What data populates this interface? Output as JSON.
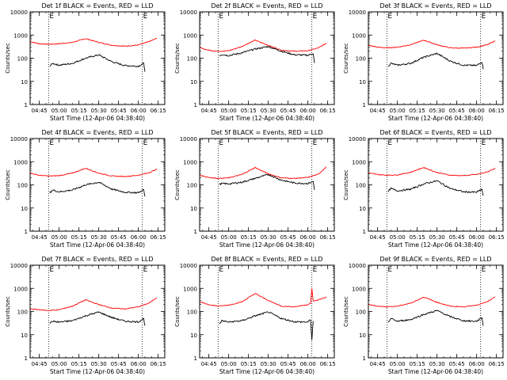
{
  "figure": {
    "x_label": "Start Time (12-Apr-06 04:38:40)",
    "y_label": "Counts/sec",
    "x_tick_labels": [
      "04:45",
      "05:00",
      "05:15",
      "05:30",
      "05:45",
      "06:00",
      "06:15"
    ],
    "y_tick_labels": [
      "1",
      "10",
      "100",
      "1000",
      "10000"
    ]
  },
  "chart_data": [
    {
      "type": "line",
      "title": "Det 1f BLACK = Events, RED = LLD",
      "xlabel": "Start Time (12-Apr-06 04:38:40)",
      "ylabel": "Counts/sec",
      "xlim": [
        "04:38",
        "06:20"
      ],
      "ylim": [
        1,
        10000
      ],
      "yscale": "log",
      "vlines": [
        "04:52",
        "06:03"
      ],
      "markers": [
        "E",
        "E"
      ],
      "series": [
        {
          "color": "#ff0000",
          "x": [
            "04:38",
            "04:45",
            "04:52",
            "05:00",
            "05:10",
            "05:20",
            "05:30",
            "05:40",
            "05:50",
            "06:00",
            "06:08",
            "06:14"
          ],
          "y": [
            520,
            420,
            400,
            420,
            480,
            700,
            480,
            360,
            330,
            370,
            520,
            720
          ]
        },
        {
          "color": "#000000",
          "x": [
            "04:53",
            "04:55",
            "05:00",
            "05:10",
            "05:20",
            "05:30",
            "05:40",
            "05:50",
            "06:00",
            "06:04",
            "06:05"
          ],
          "y": [
            45,
            60,
            50,
            60,
            100,
            140,
            70,
            48,
            45,
            60,
            28
          ]
        }
      ]
    },
    {
      "type": "line",
      "title": "Det 2f BLACK = Events, RED = LLD",
      "xlabel": "Start Time (12-Apr-06 04:38:40)",
      "ylabel": "Counts/sec",
      "xlim": [
        "04:38",
        "06:20"
      ],
      "ylim": [
        1,
        10000
      ],
      "yscale": "log",
      "vlines": [
        "04:52",
        "06:03"
      ],
      "markers": [
        "E",
        "E"
      ],
      "series": [
        {
          "color": "#ff0000",
          "x": [
            "04:38",
            "04:45",
            "04:52",
            "05:00",
            "05:10",
            "05:20",
            "05:30",
            "05:40",
            "05:50",
            "06:00",
            "06:08",
            "06:14"
          ],
          "y": [
            280,
            220,
            200,
            210,
            320,
            600,
            360,
            220,
            200,
            210,
            280,
            440
          ]
        },
        {
          "color": "#000000",
          "x": [
            "04:53",
            "04:55",
            "05:00",
            "05:10",
            "05:20",
            "05:30",
            "05:40",
            "05:50",
            "06:00",
            "06:04",
            "06:05"
          ],
          "y": [
            130,
            145,
            130,
            170,
            250,
            320,
            200,
            140,
            135,
            160,
            60
          ]
        }
      ]
    },
    {
      "type": "line",
      "title": "Det 3f BLACK = Events, RED = LLD",
      "xlabel": "Start Time (12-Apr-06 04:38:40)",
      "ylabel": "Counts/sec",
      "xlim": [
        "04:38",
        "06:20"
      ],
      "ylim": [
        1,
        10000
      ],
      "yscale": "log",
      "vlines": [
        "04:52",
        "06:03"
      ],
      "markers": [
        "E",
        "E"
      ],
      "series": [
        {
          "color": "#ff0000",
          "x": [
            "04:38",
            "04:45",
            "04:52",
            "05:00",
            "05:10",
            "05:20",
            "05:30",
            "05:40",
            "05:50",
            "06:00",
            "06:08",
            "06:14"
          ],
          "y": [
            360,
            300,
            280,
            300,
            380,
            600,
            380,
            280,
            270,
            300,
            380,
            560
          ]
        },
        {
          "color": "#000000",
          "x": [
            "04:53",
            "04:55",
            "05:00",
            "05:10",
            "05:20",
            "05:30",
            "05:40",
            "05:50",
            "06:00",
            "06:04",
            "06:05"
          ],
          "y": [
            45,
            60,
            50,
            60,
            110,
            160,
            75,
            50,
            48,
            70,
            35
          ]
        }
      ]
    },
    {
      "type": "line",
      "title": "Det 4f BLACK = Events, RED = LLD",
      "xlabel": "Start Time (12-Apr-06 04:38:40)",
      "ylabel": "Counts/sec",
      "xlim": [
        "04:38",
        "06:20"
      ],
      "ylim": [
        1,
        10000
      ],
      "yscale": "log",
      "vlines": [
        "04:52",
        "06:03"
      ],
      "markers": [
        "E",
        "E"
      ],
      "series": [
        {
          "color": "#ff0000",
          "x": [
            "04:38",
            "04:45",
            "04:52",
            "05:00",
            "05:10",
            "05:20",
            "05:30",
            "05:40",
            "05:50",
            "06:00",
            "06:08",
            "06:14"
          ],
          "y": [
            320,
            260,
            240,
            250,
            320,
            520,
            320,
            240,
            230,
            260,
            330,
            480
          ]
        },
        {
          "color": "#000000",
          "x": [
            "04:53",
            "04:55",
            "05:00",
            "05:10",
            "05:20",
            "05:30",
            "05:40",
            "05:50",
            "06:00",
            "06:04",
            "06:05"
          ],
          "y": [
            45,
            60,
            50,
            60,
            100,
            130,
            65,
            48,
            46,
            62,
            30
          ]
        }
      ]
    },
    {
      "type": "line",
      "title": "Det 5f BLACK = Events, RED = LLD",
      "xlabel": "Start Time (12-Apr-06 04:38:40)",
      "ylabel": "Counts/sec",
      "xlim": [
        "04:38",
        "06:20"
      ],
      "ylim": [
        1,
        10000
      ],
      "yscale": "log",
      "vlines": [
        "04:52",
        "06:03"
      ],
      "markers": [
        "E",
        "E"
      ],
      "series": [
        {
          "color": "#ff0000",
          "x": [
            "04:38",
            "04:45",
            "04:52",
            "05:00",
            "05:10",
            "05:20",
            "05:30",
            "05:40",
            "05:50",
            "06:00",
            "06:08",
            "06:14"
          ],
          "y": [
            260,
            210,
            190,
            200,
            280,
            560,
            300,
            200,
            190,
            210,
            290,
            600
          ]
        },
        {
          "color": "#000000",
          "x": [
            "04:53",
            "04:55",
            "05:00",
            "05:10",
            "05:20",
            "05:30",
            "05:40",
            "05:50",
            "06:00",
            "06:04",
            "06:05"
          ],
          "y": [
            105,
            115,
            110,
            130,
            190,
            280,
            160,
            120,
            115,
            140,
            60
          ]
        }
      ]
    },
    {
      "type": "line",
      "title": "Det 6f BLACK = Events, RED = LLD",
      "xlabel": "Start Time (12-Apr-06 04:38:40)",
      "ylabel": "Counts/sec",
      "xlim": [
        "04:38",
        "06:20"
      ],
      "ylim": [
        1,
        10000
      ],
      "yscale": "log",
      "vlines": [
        "04:52",
        "06:03"
      ],
      "markers": [
        "E",
        "E"
      ],
      "series": [
        {
          "color": "#ff0000",
          "x": [
            "04:38",
            "04:45",
            "04:52",
            "05:00",
            "05:10",
            "05:20",
            "05:30",
            "05:40",
            "05:50",
            "06:00",
            "06:08",
            "06:14"
          ],
          "y": [
            330,
            280,
            260,
            270,
            350,
            560,
            340,
            260,
            250,
            280,
            360,
            520
          ]
        },
        {
          "color": "#000000",
          "x": [
            "04:53",
            "04:55",
            "05:00",
            "05:10",
            "05:20",
            "05:30",
            "05:40",
            "05:50",
            "06:00",
            "06:04",
            "06:05"
          ],
          "y": [
            50,
            70,
            55,
            65,
            110,
            150,
            70,
            50,
            48,
            65,
            32
          ]
        }
      ]
    },
    {
      "type": "line",
      "title": "Det 7f BLACK = Events, RED = LLD",
      "xlabel": "Start Time (12-Apr-06 04:38:40)",
      "ylabel": "Counts/sec",
      "xlim": [
        "04:38",
        "06:20"
      ],
      "ylim": [
        1,
        10000
      ],
      "yscale": "log",
      "vlines": [
        "04:52",
        "06:03"
      ],
      "markers": [
        "E",
        "E"
      ],
      "series": [
        {
          "color": "#ff0000",
          "x": [
            "04:38",
            "04:45",
            "04:52",
            "05:00",
            "05:10",
            "05:20",
            "05:30",
            "05:40",
            "05:50",
            "06:00",
            "06:08",
            "06:14"
          ],
          "y": [
            130,
            120,
            110,
            120,
            170,
            320,
            200,
            140,
            130,
            160,
            230,
            400
          ]
        },
        {
          "color": "#000000",
          "x": [
            "04:53",
            "04:55",
            "05:00",
            "05:10",
            "05:20",
            "05:30",
            "05:40",
            "05:50",
            "06:00",
            "06:04",
            "06:05"
          ],
          "y": [
            32,
            38,
            35,
            40,
            65,
            95,
            55,
            38,
            36,
            50,
            25
          ]
        }
      ]
    },
    {
      "type": "line",
      "title": "Det 8f BLACK = Events, RED = LLD",
      "xlabel": "Start Time (12-Apr-06 04:38:40)",
      "ylabel": "Counts/sec",
      "xlim": [
        "04:38",
        "06:20"
      ],
      "ylim": [
        1,
        10000
      ],
      "yscale": "log",
      "vlines": [
        "04:52",
        "06:03"
      ],
      "markers": [
        "E",
        "E"
      ],
      "series": [
        {
          "color": "#ff0000",
          "x": [
            "04:38",
            "04:45",
            "04:52",
            "05:00",
            "05:10",
            "05:20",
            "05:30",
            "05:40",
            "05:50",
            "06:00",
            "06:02",
            "06:03",
            "06:04",
            "06:08",
            "06:14"
          ],
          "y": [
            260,
            200,
            170,
            190,
            260,
            600,
            300,
            170,
            160,
            200,
            220,
            1000,
            280,
            320,
            420
          ]
        },
        {
          "color": "#000000",
          "x": [
            "04:53",
            "04:55",
            "05:00",
            "05:10",
            "05:20",
            "05:30",
            "05:40",
            "05:50",
            "06:00",
            "06:02",
            "06:03",
            "06:04"
          ],
          "y": [
            30,
            40,
            35,
            40,
            65,
            95,
            50,
            36,
            35,
            45,
            6,
            40
          ]
        }
      ]
    },
    {
      "type": "line",
      "title": "Det 9f BLACK = Events, RED = LLD",
      "xlabel": "Start Time (12-Apr-06 04:38:40)",
      "ylabel": "Counts/sec",
      "xlim": [
        "04:38",
        "06:20"
      ],
      "ylim": [
        1,
        10000
      ],
      "yscale": "log",
      "vlines": [
        "04:52",
        "06:03"
      ],
      "markers": [
        "E",
        "E"
      ],
      "series": [
        {
          "color": "#ff0000",
          "x": [
            "04:38",
            "04:45",
            "04:52",
            "05:00",
            "05:10",
            "05:20",
            "05:30",
            "05:40",
            "05:50",
            "06:00",
            "06:08",
            "06:14"
          ],
          "y": [
            200,
            170,
            160,
            170,
            230,
            420,
            250,
            170,
            160,
            190,
            260,
            420
          ]
        },
        {
          "color": "#000000",
          "x": [
            "04:53",
            "04:55",
            "05:00",
            "05:10",
            "05:20",
            "05:30",
            "05:40",
            "05:50",
            "06:00",
            "06:04",
            "06:05"
          ],
          "y": [
            35,
            50,
            38,
            45,
            75,
            110,
            60,
            40,
            38,
            55,
            25
          ]
        }
      ]
    }
  ]
}
